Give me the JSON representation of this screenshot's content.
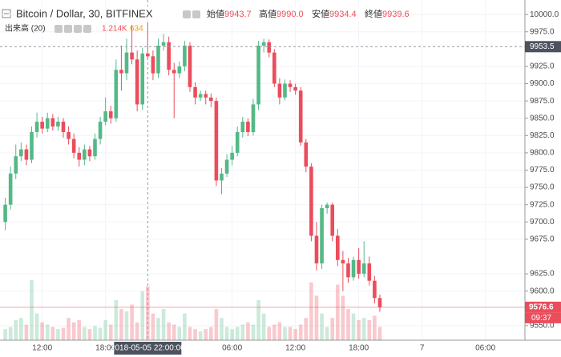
{
  "legend": {
    "symbol": "Bitcoin / Dollar, 30, BITFINEX",
    "fields": [
      {
        "label": "始値",
        "value": "9943.7"
      },
      {
        "label": "高値",
        "value": "9990.0"
      },
      {
        "label": "安値",
        "value": "9934.4"
      },
      {
        "label": "終値",
        "value": "9939.6"
      }
    ]
  },
  "volume_legend": {
    "label": "出来高 (20)",
    "value": "1.214K",
    "ma": "634"
  },
  "chart_data": {
    "type": "candlestick",
    "up_color": "#53b987",
    "down_color": "#eb4d5c",
    "grid": true,
    "x": [
      "2018-05-05 08:30",
      "2018-05-05 09:00",
      "2018-05-05 09:30",
      "2018-05-05 10:00",
      "2018-05-05 10:30",
      "2018-05-05 11:00",
      "2018-05-05 11:30",
      "2018-05-05 12:00",
      "2018-05-05 12:30",
      "2018-05-05 13:00",
      "2018-05-05 13:30",
      "2018-05-05 14:00",
      "2018-05-05 14:30",
      "2018-05-05 15:00",
      "2018-05-05 15:30",
      "2018-05-05 16:00",
      "2018-05-05 16:30",
      "2018-05-05 17:00",
      "2018-05-05 17:30",
      "2018-05-05 18:00",
      "2018-05-05 18:30",
      "2018-05-05 19:00",
      "2018-05-05 19:30",
      "2018-05-05 20:00",
      "2018-05-05 20:30",
      "2018-05-05 21:00",
      "2018-05-05 21:30",
      "2018-05-05 22:00",
      "2018-05-05 22:30",
      "2018-05-05 23:00",
      "2018-05-05 23:30",
      "2018-05-06 00:00",
      "2018-05-06 00:30",
      "2018-05-06 01:00",
      "2018-05-06 01:30",
      "2018-05-06 02:00",
      "2018-05-06 02:30",
      "2018-05-06 03:00",
      "2018-05-06 03:30",
      "2018-05-06 04:00",
      "2018-05-06 04:30",
      "2018-05-06 05:00",
      "2018-05-06 05:30",
      "2018-05-06 06:00",
      "2018-05-06 06:30",
      "2018-05-06 07:00",
      "2018-05-06 07:30",
      "2018-05-06 08:00",
      "2018-05-06 08:30",
      "2018-05-06 09:00",
      "2018-05-06 09:30",
      "2018-05-06 10:00",
      "2018-05-06 10:30",
      "2018-05-06 11:00",
      "2018-05-06 11:30",
      "2018-05-06 12:00",
      "2018-05-06 12:30",
      "2018-05-06 13:00",
      "2018-05-06 13:30",
      "2018-05-06 14:00",
      "2018-05-06 14:30",
      "2018-05-06 15:00",
      "2018-05-06 15:30",
      "2018-05-06 16:00",
      "2018-05-06 16:30",
      "2018-05-06 17:00",
      "2018-05-06 17:30",
      "2018-05-06 18:00",
      "2018-05-06 18:30",
      "2018-05-06 19:00",
      "2018-05-06 19:30",
      "2018-05-06 20:00"
    ],
    "open": [
      9700,
      9725,
      9770,
      9795,
      9805,
      9790,
      9830,
      9845,
      9835,
      9850,
      9838,
      9845,
      9830,
      9820,
      9800,
      9790,
      9805,
      9795,
      9820,
      9845,
      9860,
      9850,
      9920,
      9915,
      9945,
      9935,
      9870,
      9943.7,
      9939.6,
      9915,
      9955,
      9960,
      9920,
      9915,
      9925,
      9955,
      9895,
      9880,
      9885,
      9880,
      9875,
      9760,
      9770,
      9790,
      9800,
      9830,
      9845,
      9830,
      9870,
      9955,
      9960,
      9945,
      9900,
      9880,
      9900,
      9895,
      9890,
      9815,
      9780,
      9680,
      9640,
      9720,
      9725,
      9680,
      9645,
      9640,
      9620,
      9645,
      9625,
      9640,
      9615,
      9590
    ],
    "high": [
      9735,
      9780,
      9812,
      9815,
      9812,
      9838,
      9858,
      9852,
      9858,
      9856,
      9852,
      9850,
      9838,
      9828,
      9808,
      9812,
      9810,
      9828,
      9852,
      9880,
      9868,
      9935,
      9955,
      9965,
      9985,
      9948,
      9952,
      9990,
      9948,
      9965,
      9972,
      9968,
      9930,
      9932,
      9962,
      9960,
      9902,
      9890,
      9890,
      9886,
      9880,
      9778,
      9798,
      9810,
      9838,
      9852,
      9850,
      9878,
      9962,
      9965,
      9964,
      9950,
      9908,
      9906,
      9905,
      9900,
      9895,
      9820,
      9785,
      9700,
      9725,
      9728,
      9728,
      9690,
      9658,
      9648,
      9650,
      9662,
      9672,
      9650,
      9622,
      9595
    ],
    "low": [
      9688,
      9718,
      9762,
      9788,
      9782,
      9785,
      9822,
      9828,
      9830,
      9832,
      9832,
      9822,
      9812,
      9792,
      9780,
      9782,
      9788,
      9790,
      9812,
      9840,
      9842,
      9845,
      9890,
      9905,
      9928,
      9860,
      9862,
      9934.4,
      9905,
      9908,
      9948,
      9912,
      9850,
      9908,
      9918,
      9888,
      9870,
      9875,
      9870,
      9866,
      9752,
      9740,
      9765,
      9782,
      9795,
      9822,
      9824,
      9825,
      9862,
      9945,
      9938,
      9895,
      9870,
      9876,
      9888,
      9884,
      9810,
      9772,
      9672,
      9630,
      9632,
      9712,
      9672,
      9636,
      9600,
      9612,
      9615,
      9618,
      9620,
      9608,
      9582,
      9570
    ],
    "close": [
      9725,
      9770,
      9795,
      9805,
      9790,
      9830,
      9845,
      9835,
      9850,
      9838,
      9845,
      9830,
      9820,
      9800,
      9790,
      9805,
      9795,
      9820,
      9845,
      9860,
      9850,
      9920,
      9915,
      9945,
      9935,
      9870,
      9943.7,
      9939.6,
      9915,
      9955,
      9960,
      9920,
      9915,
      9925,
      9955,
      9895,
      9880,
      9885,
      9880,
      9875,
      9760,
      9770,
      9790,
      9800,
      9830,
      9845,
      9830,
      9870,
      9955,
      9960,
      9945,
      9900,
      9880,
      9900,
      9895,
      9890,
      9815,
      9780,
      9680,
      9640,
      9720,
      9725,
      9680,
      9645,
      9640,
      9620,
      9645,
      9625,
      9640,
      9615,
      9590,
      9576.6
    ],
    "volume": [
      250,
      300,
      450,
      500,
      350,
      1350,
      600,
      400,
      350,
      300,
      250,
      280,
      500,
      400,
      450,
      300,
      250,
      320,
      280,
      450,
      350,
      900,
      700,
      650,
      800,
      400,
      1100,
      1214,
      600,
      500,
      700,
      400,
      350,
      300,
      600,
      300,
      250,
      200,
      250,
      300,
      700,
      500,
      300,
      250,
      300,
      350,
      400,
      350,
      900,
      600,
      300,
      350,
      400,
      300,
      300,
      250,
      350,
      500,
      1300,
      1000,
      600,
      300,
      500,
      1250,
      1000,
      700,
      600,
      450,
      500,
      450,
      550,
      300
    ],
    "xlim": [
      "2018-05-05 08:00",
      "2018-05-07 09:45"
    ],
    "xticks": [
      {
        "value": "2018-05-05 12:00",
        "label": "12:00"
      },
      {
        "value": "2018-05-05 18:00",
        "label": "18:00"
      },
      {
        "value": "2018-05-06 06:00",
        "label": "06:00"
      },
      {
        "value": "2018-05-06 12:00",
        "label": "12:00"
      },
      {
        "value": "2018-05-06 18:00",
        "label": "18:00"
      },
      {
        "value": "2018-05-07 00:00",
        "label": "7"
      },
      {
        "value": "2018-05-07 06:00",
        "label": "06:00"
      }
    ],
    "ylim": [
      9529,
      10021
    ],
    "yticks": [
      {
        "value": 10000,
        "label": "10000.0"
      },
      {
        "value": 9975,
        "label": "9975.0"
      },
      {
        "value": 9925,
        "label": "9925.0"
      },
      {
        "value": 9900,
        "label": "9900.0"
      },
      {
        "value": 9875,
        "label": "9875.0"
      },
      {
        "value": 9850,
        "label": "9850.0"
      },
      {
        "value": 9825,
        "label": "9825.0"
      },
      {
        "value": 9800,
        "label": "9800.0"
      },
      {
        "value": 9775,
        "label": "9775.0"
      },
      {
        "value": 9750,
        "label": "9750.0"
      },
      {
        "value": 9725,
        "label": "9725.0"
      },
      {
        "value": 9700,
        "label": "9700.0"
      },
      {
        "value": 9675,
        "label": "9675.0"
      },
      {
        "value": 9625,
        "label": "9625.0"
      },
      {
        "value": 9600,
        "label": "9600.0"
      },
      {
        "value": 9550,
        "label": "9550.0"
      }
    ],
    "crosshair": {
      "x": "2018-05-05 22:00",
      "x_label": "2018-05-05 22:00:00",
      "y": 9953.5,
      "y_label": "9953.5"
    },
    "last": {
      "value": 9576.6,
      "label": "9576.6",
      "countdown": "09:37"
    }
  }
}
